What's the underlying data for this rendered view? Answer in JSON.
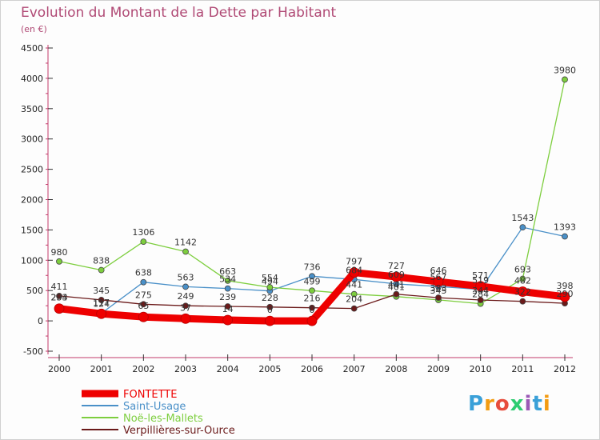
{
  "header": {
    "title": "Evolution du Montant de la Dette par Habitant",
    "subtitle": "(en €)"
  },
  "logo": {
    "text": "Proxiti",
    "colors": [
      "#3aa0d8",
      "#f39c12",
      "#e74c3c",
      "#2ecc71",
      "#9b59b6",
      "#3aa0d8",
      "#f39c12"
    ]
  },
  "chart_data": {
    "type": "line",
    "x": [
      "2000",
      "2001",
      "2002",
      "2003",
      "2004",
      "2005",
      "2006",
      "2007",
      "2008",
      "2009",
      "2010",
      "2011",
      "2012"
    ],
    "ylim": [
      -500,
      4500
    ],
    "yticks": [
      "-500",
      "0",
      "500",
      "1000",
      "1500",
      "2000",
      "2500",
      "3000",
      "3500",
      "4000",
      "4500"
    ],
    "grid": false,
    "legend_position": "bottom-left",
    "series": [
      {
        "name": "Saint-Usage",
        "color": "#4a90c8",
        "width": 1.3,
        "values": [
          234,
          124,
          638,
          563,
          534,
          494,
          736,
          684,
          609,
          567,
          519,
          1543,
          1393
        ],
        "labels": [
          "234",
          "124",
          "638",
          "563",
          "534",
          "494",
          "736",
          "684",
          "609",
          "567",
          "519",
          "1543",
          "1393"
        ]
      },
      {
        "name": "Noë-les-Mallets",
        "color": "#7dce3e",
        "width": 1.3,
        "values": [
          980,
          838,
          1306,
          1142,
          663,
          554,
          499,
          441,
          401,
          345,
          284,
          693,
          3980
        ],
        "labels": [
          "980",
          "838",
          "1306",
          "1142",
          "663",
          "554",
          "499",
          "441",
          "401",
          "345",
          "284",
          "693",
          "3980"
        ]
      },
      {
        "name": "Verpillières-sur-Ource",
        "color": "#6b1a1a",
        "width": 1.3,
        "values": [
          411,
          345,
          275,
          249,
          239,
          228,
          216,
          204,
          441,
          383,
          344,
          322,
          290
        ],
        "labels": [
          "411",
          "345",
          "275",
          "249",
          "239",
          "228",
          "216",
          "204",
          "441",
          "383",
          "344",
          "322",
          "290"
        ]
      },
      {
        "name": "FONTETTE",
        "color": "#ee0000",
        "width": 9,
        "values": [
          203,
          117,
          65,
          37,
          14,
          0,
          0,
          797,
          727,
          646,
          571,
          482,
          398
        ],
        "labels": [
          "203",
          "117",
          "65",
          "37",
          "14",
          "0",
          "0",
          "797",
          "727",
          "646",
          "571",
          "482",
          "398"
        ]
      }
    ],
    "legend_order": [
      "FONTETTE",
      "Saint-Usage",
      "Noë-les-Mallets",
      "Verpillières-sur-Ource"
    ]
  }
}
